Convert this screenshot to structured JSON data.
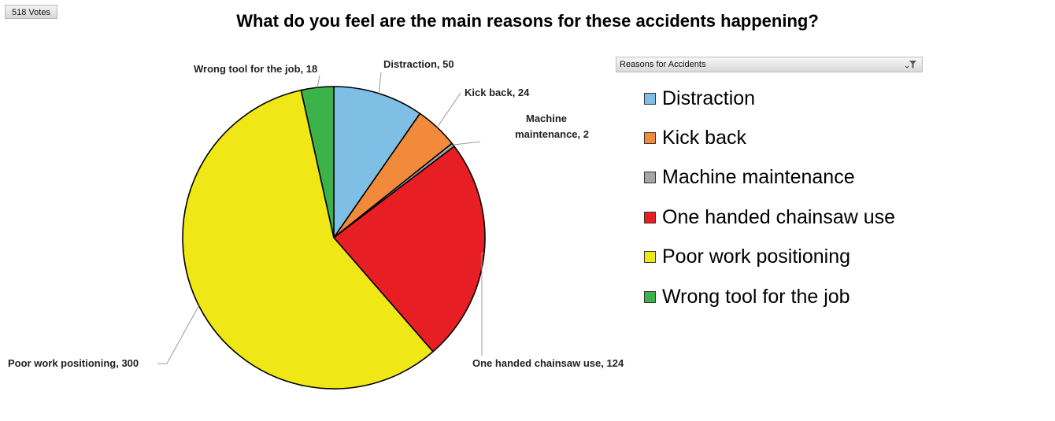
{
  "votes_label": "518 Votes",
  "chart_data": {
    "type": "pie",
    "title": "What do you feel are the main reasons for these accidents happening?",
    "slices": [
      {
        "name": "Distraction",
        "value": 50,
        "color": "#7fbfe6",
        "label": "Distraction, 50"
      },
      {
        "name": "Kick back",
        "value": 24,
        "color": "#f28a3c",
        "label": "Kick back, 24"
      },
      {
        "name": "Machine maintenance",
        "value": 2,
        "color": "#a6a6a6",
        "label_lines": [
          "Machine",
          "maintenance, 2"
        ]
      },
      {
        "name": "One handed chainsaw use",
        "value": 124,
        "color": "#e81e25",
        "label": "One handed chainsaw use, 124"
      },
      {
        "name": "Poor work positioning",
        "value": 300,
        "color": "#f0e716",
        "label": "Poor work positioning, 300"
      },
      {
        "name": "Wrong tool for the job",
        "value": 18,
        "color": "#3cb34a",
        "label": "Wrong tool for the job, 18"
      }
    ],
    "legend": {
      "title": "Reasons for Accidents",
      "position": "right"
    }
  }
}
